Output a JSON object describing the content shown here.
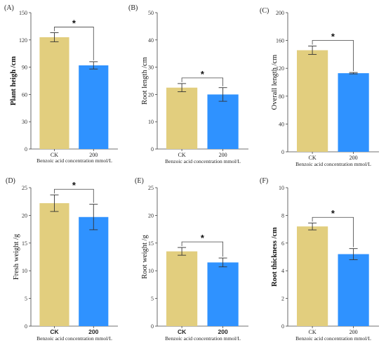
{
  "colors": {
    "ck": "#e2ce7e",
    "treat": "#2f92ff"
  },
  "chart_data": [
    {
      "type": "bar",
      "panel": "(A)",
      "categories": [
        "CK",
        "200"
      ],
      "values": [
        123,
        92
      ],
      "errors": [
        5,
        4
      ],
      "ylabel": "Plant heigh /cm",
      "xlabel": "Benzoic acid concentration mmol/L",
      "ylim": [
        0,
        150
      ],
      "yticks": [
        0,
        30,
        60,
        90,
        120,
        150
      ],
      "significance": "*",
      "bold_ylabel": true,
      "bold_cats": false
    },
    {
      "type": "bar",
      "panel": "(B)",
      "categories": [
        "CK",
        "200"
      ],
      "values": [
        22.5,
        20
      ],
      "errors": [
        1.5,
        2.5
      ],
      "ylabel": "Root length /cm",
      "xlabel": "Benzoic acid concentration mmol/L",
      "ylim": [
        0,
        50
      ],
      "yticks": [
        0,
        10,
        20,
        30,
        40,
        50
      ],
      "significance": "*",
      "bold_ylabel": false,
      "bold_cats": false
    },
    {
      "type": "bar",
      "panel": "(C)",
      "categories": [
        "CK",
        "200"
      ],
      "values": [
        146,
        113
      ],
      "errors": [
        6,
        1
      ],
      "ylabel": "Overall length /cm",
      "xlabel": "Benzoic acid concentration mmol/L",
      "ylim": [
        0,
        200
      ],
      "yticks": [
        0,
        40,
        80,
        120,
        160,
        200
      ],
      "significance": "*",
      "bold_ylabel": false,
      "bold_cats": false
    },
    {
      "type": "bar",
      "panel": "(D)",
      "categories": [
        "CK",
        "200"
      ],
      "values": [
        22.2,
        19.7
      ],
      "errors": [
        1.5,
        2.3
      ],
      "ylabel": "Fresh weight /g",
      "xlabel": "Benzoic acid concentration mmol/L",
      "ylim": [
        0,
        25
      ],
      "yticks": [
        0,
        5,
        10,
        15,
        20,
        25
      ],
      "significance": "*",
      "bold_ylabel": false,
      "bold_cats": true
    },
    {
      "type": "bar",
      "panel": "(E)",
      "categories": [
        "CK",
        "200"
      ],
      "values": [
        13.5,
        11.5
      ],
      "errors": [
        0.7,
        0.8
      ],
      "ylabel": "Root weight /g",
      "xlabel": "Benzoic acid concentration mmol/L",
      "ylim": [
        0,
        25
      ],
      "yticks": [
        0,
        5,
        10,
        15,
        20,
        25
      ],
      "significance": "*",
      "bold_ylabel": false,
      "bold_cats": true
    },
    {
      "type": "bar",
      "panel": "(F)",
      "categories": [
        "CK",
        "200"
      ],
      "values": [
        7.2,
        5.2
      ],
      "errors": [
        0.25,
        0.4
      ],
      "ylabel": "Root thickness /cm",
      "xlabel": "Benzoic acid concentration mmol/L",
      "ylim": [
        0,
        10
      ],
      "yticks": [
        0,
        2,
        4,
        6,
        8,
        10
      ],
      "significance": "*",
      "bold_ylabel": true,
      "bold_cats": false
    }
  ]
}
